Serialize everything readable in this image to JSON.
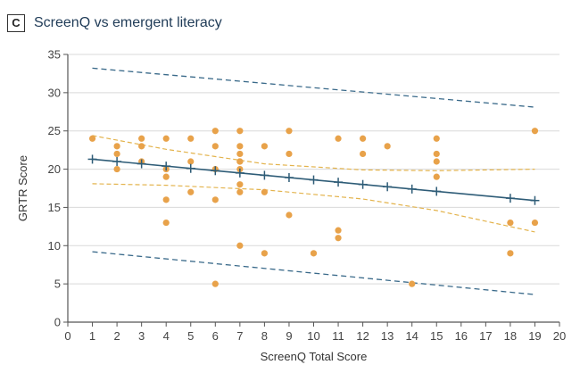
{
  "panel": {
    "letter": "C",
    "title": "ScreenQ vs emergent literacy"
  },
  "chart_data": {
    "type": "scatter",
    "title": "ScreenQ vs emergent literacy",
    "xlabel": "ScreenQ Total Score",
    "ylabel": "GRTR Score",
    "xlim": [
      0,
      20
    ],
    "ylim": [
      0,
      35
    ],
    "xticks": [
      0,
      1,
      2,
      3,
      4,
      5,
      6,
      7,
      8,
      9,
      10,
      11,
      12,
      13,
      14,
      15,
      16,
      17,
      18,
      19,
      20
    ],
    "yticks": [
      0,
      5,
      10,
      15,
      20,
      25,
      30,
      35
    ],
    "grid": "horizontal",
    "colors": {
      "points": "#e8a24a",
      "fit": "#2e5c77",
      "confidence": "#e3b34c",
      "prediction": "#3a6a8a"
    },
    "series": [
      {
        "kind": "points",
        "x": [
          1,
          2,
          2,
          2,
          3,
          3,
          3,
          4,
          4,
          4,
          4,
          4,
          5,
          5,
          5,
          6,
          6,
          6,
          6,
          6,
          7,
          7,
          7,
          7,
          7,
          7,
          7,
          7,
          7,
          8,
          8,
          8,
          9,
          9,
          9,
          10,
          11,
          11,
          11,
          12,
          12,
          13,
          14,
          15,
          15,
          15,
          15,
          18,
          18,
          19,
          19
        ],
        "y": [
          24,
          23,
          22,
          20,
          24,
          23,
          21,
          24,
          19,
          16,
          13,
          20,
          24,
          21,
          17,
          25,
          23,
          20,
          16,
          5,
          25,
          23,
          22,
          21,
          20,
          18,
          17,
          10,
          21,
          23,
          17,
          9,
          25,
          22,
          14,
          9,
          24,
          12,
          11,
          24,
          22,
          23,
          5,
          24,
          22,
          19,
          21,
          13,
          9,
          25,
          13
        ]
      },
      {
        "kind": "fit",
        "x": [
          1,
          19
        ],
        "y": [
          21.3,
          15.9
        ],
        "markers_x": [
          1,
          2,
          3,
          4,
          5,
          6,
          7,
          8,
          9,
          10,
          11,
          12,
          13,
          14,
          15,
          18,
          19
        ]
      },
      {
        "kind": "ci-upper",
        "x": [
          1,
          4,
          8,
          12,
          15,
          19
        ],
        "y": [
          24.4,
          22.6,
          20.7,
          19.9,
          19.8,
          20.0
        ]
      },
      {
        "kind": "ci-lower",
        "x": [
          1,
          4,
          8,
          12,
          15,
          19
        ],
        "y": [
          18.1,
          17.9,
          17.3,
          16.1,
          14.6,
          11.8
        ]
      },
      {
        "kind": "pi-upper",
        "x": [
          1,
          19
        ],
        "y": [
          33.2,
          28.1
        ]
      },
      {
        "kind": "pi-lower",
        "x": [
          1,
          19
        ],
        "y": [
          9.2,
          3.6
        ]
      }
    ]
  }
}
